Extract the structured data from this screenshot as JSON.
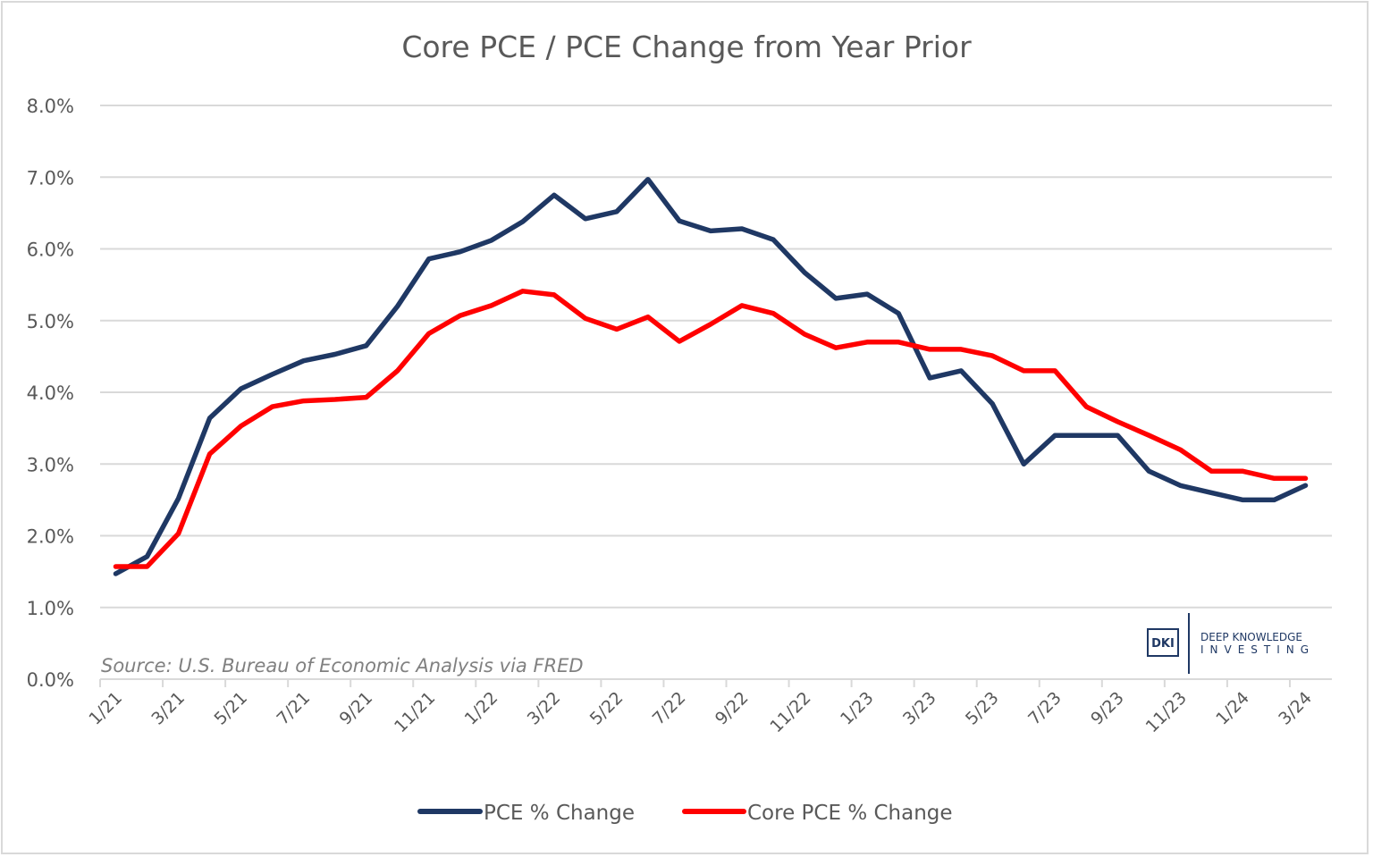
{
  "chart_data": {
    "type": "line",
    "title": "Core PCE / PCE Change from Year Prior",
    "xlabel": "",
    "ylabel": "",
    "ylim": [
      0,
      8
    ],
    "yticks": [
      "0.0%",
      "1.0%",
      "2.0%",
      "3.0%",
      "4.0%",
      "5.0%",
      "6.0%",
      "7.0%",
      "8.0%"
    ],
    "grid": true,
    "legend_position": "bottom",
    "x": [
      "1/21",
      "2/21",
      "3/21",
      "4/21",
      "5/21",
      "6/21",
      "7/21",
      "8/21",
      "9/21",
      "10/21",
      "11/21",
      "12/21",
      "1/22",
      "2/22",
      "3/22",
      "4/22",
      "5/22",
      "6/22",
      "7/22",
      "8/22",
      "9/22",
      "10/22",
      "11/22",
      "12/22",
      "1/23",
      "2/23",
      "3/23",
      "4/23",
      "5/23",
      "6/23",
      "7/23",
      "8/23",
      "9/23",
      "10/23",
      "11/23",
      "12/23",
      "1/24",
      "2/24",
      "3/24"
    ],
    "xtick_labels": [
      "1/21",
      "3/21",
      "5/21",
      "7/21",
      "9/21",
      "11/21",
      "1/22",
      "3/22",
      "5/22",
      "7/22",
      "9/22",
      "11/22",
      "1/23",
      "3/23",
      "5/23",
      "7/23",
      "9/23",
      "11/23",
      "1/24",
      "3/24"
    ],
    "series": [
      {
        "name": "PCE % Change",
        "color": "#1f3864",
        "values": [
          1.47,
          1.71,
          2.52,
          3.64,
          4.05,
          4.25,
          4.44,
          4.53,
          4.65,
          5.2,
          5.86,
          5.96,
          6.12,
          6.38,
          6.75,
          6.42,
          6.52,
          6.97,
          6.39,
          6.25,
          6.28,
          6.13,
          5.67,
          5.31,
          5.37,
          5.1,
          4.2,
          4.3,
          3.84,
          3.0,
          3.4,
          3.4,
          3.4,
          2.9,
          2.7,
          2.6,
          2.5,
          2.5,
          2.7
        ]
      },
      {
        "name": "Core PCE % Change",
        "color": "#ff0000",
        "values": [
          1.57,
          1.57,
          2.03,
          3.14,
          3.53,
          3.8,
          3.88,
          3.9,
          3.93,
          4.3,
          4.82,
          5.07,
          5.21,
          5.41,
          5.36,
          5.03,
          4.88,
          5.05,
          4.71,
          4.95,
          5.21,
          5.1,
          4.81,
          4.62,
          4.7,
          4.7,
          4.6,
          4.6,
          4.51,
          4.3,
          4.3,
          3.8,
          3.59,
          3.4,
          3.2,
          2.9,
          2.9,
          2.8,
          2.8
        ]
      }
    ],
    "annotations": [
      "Source: U.S. Bureau of Economic Analysis via FRED"
    ]
  },
  "logo": {
    "mark": "DKI",
    "line1": "DEEP KNOWLEDGE",
    "line2": "INVESTING"
  },
  "colors": {
    "gridline": "#d9d9d9",
    "text": "#595959"
  }
}
